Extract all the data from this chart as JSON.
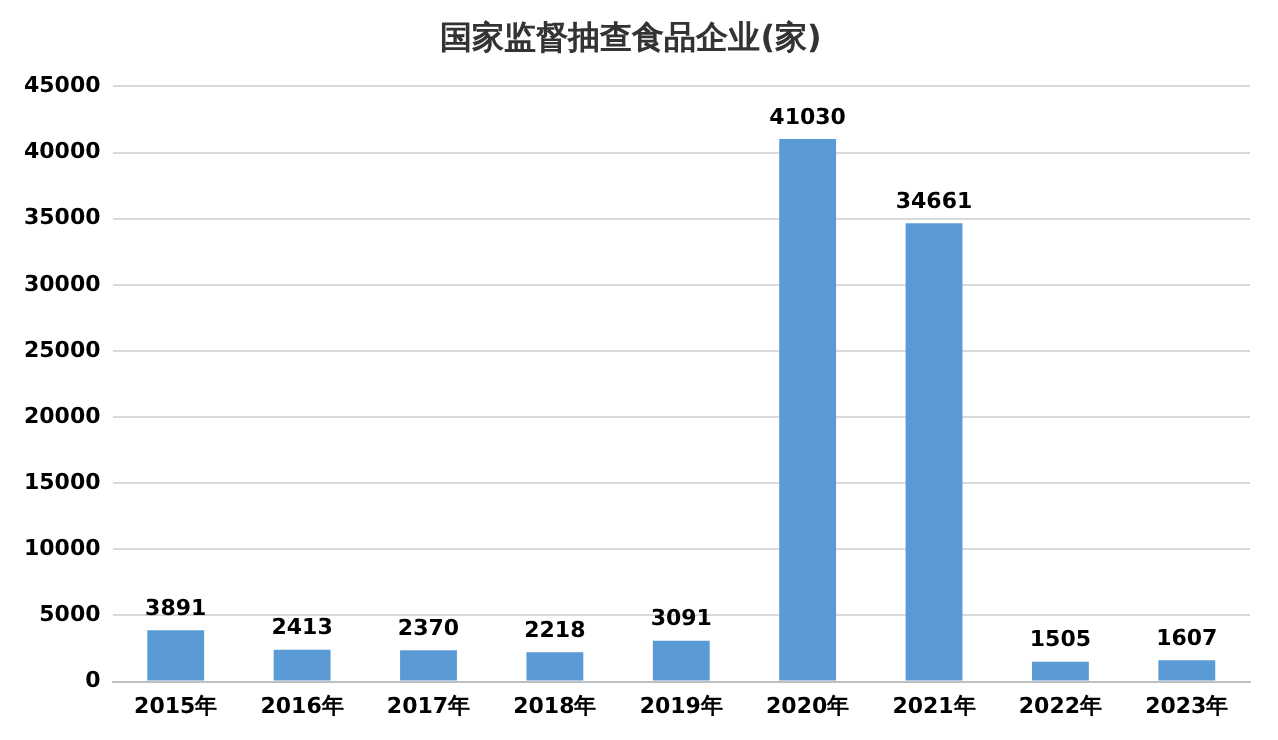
{
  "chart_data": {
    "type": "bar",
    "title": "国家监督抽查食品企业(家)",
    "categories": [
      "2015年",
      "2016年",
      "2017年",
      "2018年",
      "2019年",
      "2020年",
      "2021年",
      "2022年",
      "2023年"
    ],
    "values": [
      3891,
      2413,
      2370,
      2218,
      3091,
      41030,
      34661,
      1505,
      1607
    ],
    "color": "#5b9bd5",
    "ylim": [
      0,
      45000
    ],
    "yticks": [
      0,
      5000,
      10000,
      15000,
      20000,
      25000,
      30000,
      35000,
      40000,
      45000
    ],
    "grid": "y",
    "data_labels": true
  }
}
